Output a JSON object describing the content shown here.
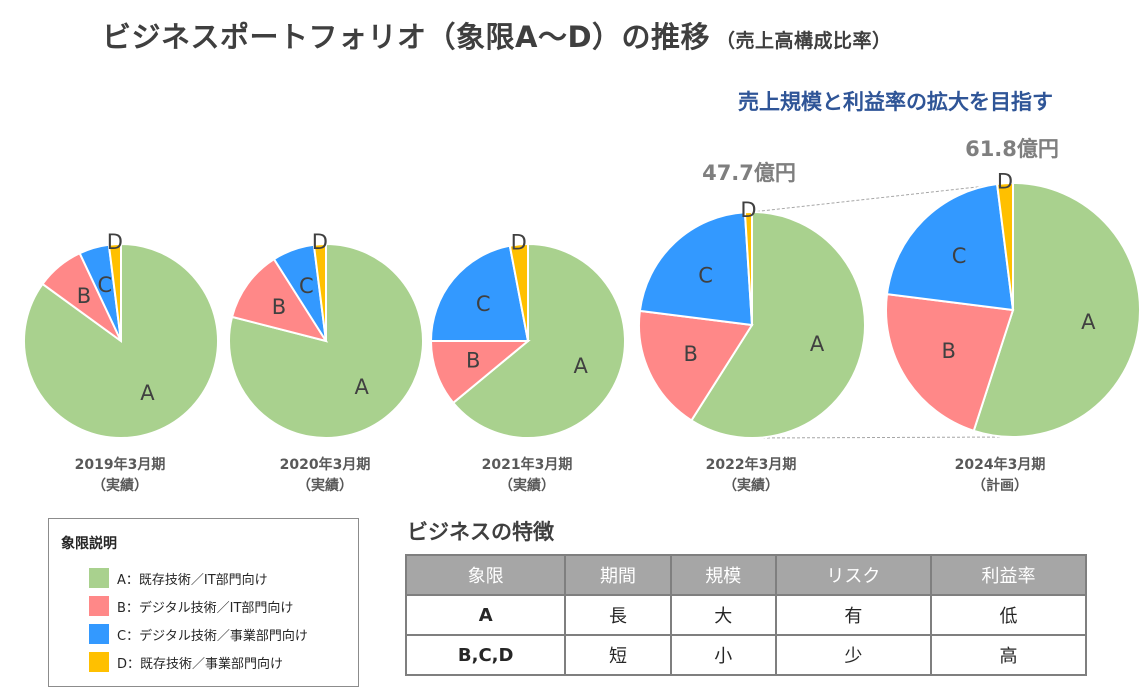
{
  "header": {
    "title": "ビジネスポートフォリオ（象限A～D）の推移",
    "subtitle": "（売上高構成比率）",
    "tagline": "売上規模と利益率の拡大を目指す"
  },
  "colors": {
    "A": "#a9d18e",
    "B": "#ff8888",
    "C": "#3399ff",
    "D": "#ffc000"
  },
  "chart_data": {
    "type": "pie",
    "quadrants": [
      "A",
      "B",
      "C",
      "D"
    ],
    "pies": [
      {
        "period": "2019年3月期",
        "status": "（実績）",
        "values": [
          0.85,
          0.08,
          0.05,
          0.02
        ],
        "total_label": ""
      },
      {
        "period": "2020年3月期",
        "status": "（実績）",
        "values": [
          0.79,
          0.12,
          0.07,
          0.02
        ],
        "total_label": ""
      },
      {
        "period": "2021年3月期",
        "status": "（実績）",
        "values": [
          0.64,
          0.11,
          0.22,
          0.03
        ],
        "total_label": ""
      },
      {
        "period": "2022年3月期",
        "status": "（実績）",
        "values": [
          0.59,
          0.18,
          0.22,
          0.01
        ],
        "total_label": "47.7億円"
      },
      {
        "period": "2024年3月期",
        "status": "（計画）",
        "values": [
          0.55,
          0.22,
          0.21,
          0.02
        ],
        "total_label": "61.8億円"
      }
    ]
  },
  "legend": {
    "title": "象限説明",
    "items": [
      {
        "key": "A",
        "label": "A：既存技術／IT部門向け"
      },
      {
        "key": "B",
        "label": "B：デジタル技術／IT部門向け"
      },
      {
        "key": "C",
        "label": "C：デジタル技術／事業部門向け"
      },
      {
        "key": "D",
        "label": "D：既存技術／事業部門向け"
      }
    ]
  },
  "features": {
    "title": "ビジネスの特徴",
    "headers": [
      "象限",
      "期間",
      "規模",
      "リスク",
      "利益率"
    ],
    "rows": [
      [
        "A",
        "長",
        "大",
        "有",
        "低"
      ],
      [
        "B,C,D",
        "短",
        "小",
        "少",
        "高"
      ]
    ]
  }
}
